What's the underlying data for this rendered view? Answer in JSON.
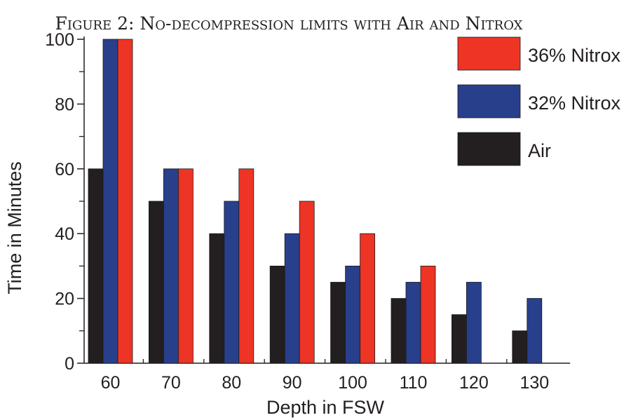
{
  "chart_data": {
    "type": "bar",
    "title": "Figure 2: No-decompression limits with Air and Nitrox",
    "xlabel": "Depth in FSW",
    "ylabel": "Time in Minutes",
    "categories": [
      "60",
      "70",
      "80",
      "90",
      "100",
      "110",
      "120",
      "130"
    ],
    "ylim": [
      0,
      100
    ],
    "yticks": [
      "0",
      "20",
      "40",
      "60",
      "80",
      "100"
    ],
    "series": [
      {
        "name": "Air",
        "color": "#231f20",
        "values": [
          60,
          50,
          40,
          30,
          25,
          20,
          15,
          10
        ]
      },
      {
        "name": "32% Nitrox",
        "color": "#283f8c",
        "values": [
          100,
          60,
          50,
          40,
          30,
          25,
          25,
          20
        ]
      },
      {
        "name": "36% Nitrox",
        "color": "#ee3424",
        "values": [
          100,
          60,
          60,
          50,
          40,
          30,
          null,
          null
        ]
      }
    ],
    "legend": {
      "placement": "top-right",
      "order": [
        "36% Nitrox",
        "32% Nitrox",
        "Air"
      ]
    },
    "grid": false
  }
}
